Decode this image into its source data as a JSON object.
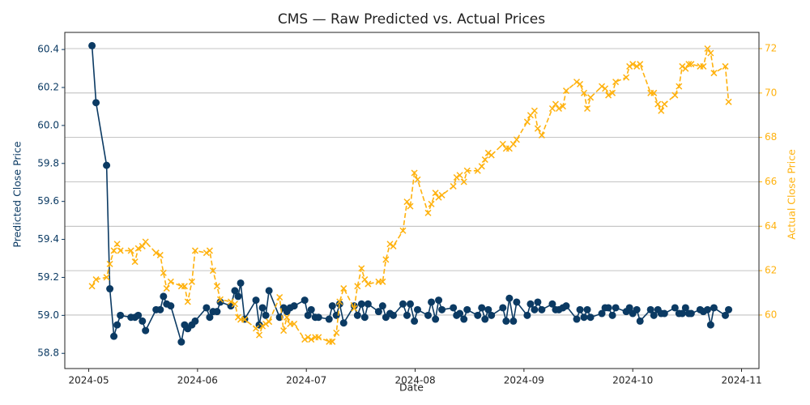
{
  "chart_data": {
    "type": "line",
    "title": "CMS — Raw Predicted vs. Actual Prices",
    "xlabel": "Date",
    "ylabel": "Predicted Close Price",
    "y2label": "Actual Close Price",
    "x": [
      5.03,
      5.067,
      5.164,
      5.194,
      5.231,
      5.261,
      5.291,
      5.388,
      5.425,
      5.455,
      5.493,
      5.522,
      5.619,
      5.657,
      5.687,
      5.716,
      5.754,
      5.851,
      5.881,
      5.91,
      5.948,
      5.978,
      6.082,
      6.112,
      6.142,
      6.179,
      6.209,
      6.306,
      6.343,
      6.373,
      6.396,
      6.433,
      6.537,
      6.567,
      6.597,
      6.627,
      6.657,
      6.754,
      6.791,
      6.821,
      6.851,
      6.888,
      6.985,
      7.015,
      7.045,
      7.082,
      7.112,
      7.209,
      7.239,
      7.276,
      7.306,
      7.343,
      7.44,
      7.47,
      7.507,
      7.537,
      7.567,
      7.664,
      7.701,
      7.731,
      7.769,
      7.799,
      7.888,
      7.925,
      7.955,
      7.993,
      8.022,
      8.119,
      8.149,
      8.187,
      8.216,
      8.246,
      8.351,
      8.381,
      8.41,
      8.448,
      8.478,
      8.575,
      8.612,
      8.642,
      8.672,
      8.701,
      8.806,
      8.836,
      8.866,
      8.903,
      8.933,
      9.03,
      9.06,
      9.097,
      9.127,
      9.164,
      9.261,
      9.291,
      9.321,
      9.358,
      9.388,
      9.485,
      9.515,
      9.552,
      9.582,
      9.612,
      9.716,
      9.746,
      9.776,
      9.813,
      9.843,
      9.94,
      9.97,
      10.0,
      10.037,
      10.067,
      10.164,
      10.194,
      10.231,
      10.261,
      10.291,
      10.388,
      10.425,
      10.455,
      10.485,
      10.515,
      10.537,
      10.619,
      10.649,
      10.687,
      10.716,
      10.746,
      10.851,
      10.881
    ],
    "xlim": [
      4.78,
      11.16
    ],
    "xticks": [
      {
        "value": 5,
        "label": "2024-05"
      },
      {
        "value": 6,
        "label": "2024-06"
      },
      {
        "value": 7,
        "label": "2024-07"
      },
      {
        "value": 8,
        "label": "2024-08"
      },
      {
        "value": 9,
        "label": "2024-09"
      },
      {
        "value": 10,
        "label": "2024-10"
      },
      {
        "value": 11,
        "label": "2024-11"
      }
    ],
    "ylim": [
      58.72,
      60.49
    ],
    "yticks": [
      58.8,
      {
        "value": 59.0,
        "label": "59.0"
      },
      59.2,
      59.4,
      59.6,
      59.8,
      {
        "value": 60.0,
        "label": "60.0"
      },
      60.2,
      60.4
    ],
    "y2lim": [
      57.59,
      72.73
    ],
    "y2ticks": [
      60,
      62,
      64,
      66,
      68,
      70,
      72
    ],
    "grid": true,
    "grid_axis": "y2",
    "series": [
      {
        "name": "Predicted",
        "color": "#0b3a63",
        "marker": "circle",
        "values": [
          60.42,
          60.12,
          59.79,
          59.14,
          58.89,
          58.95,
          59.0,
          58.99,
          58.99,
          59.0,
          58.97,
          58.92,
          59.03,
          59.03,
          59.1,
          59.06,
          59.05,
          58.86,
          58.95,
          58.93,
          58.95,
          58.97,
          59.04,
          58.99,
          59.02,
          59.02,
          59.07,
          59.05,
          59.13,
          59.1,
          59.17,
          58.98,
          59.08,
          58.95,
          59.04,
          59.0,
          59.13,
          58.99,
          59.04,
          59.02,
          59.04,
          59.05,
          59.08,
          59.0,
          59.03,
          58.99,
          58.99,
          58.98,
          59.05,
          59.0,
          59.06,
          58.96,
          59.05,
          59.0,
          59.06,
          58.99,
          59.06,
          59.02,
          59.05,
          58.99,
          59.01,
          59.0,
          59.06,
          59.0,
          59.06,
          58.97,
          59.03,
          59.0,
          59.07,
          58.98,
          59.08,
          59.03,
          59.04,
          59.0,
          59.01,
          58.98,
          59.03,
          59.0,
          59.04,
          58.98,
          59.03,
          59.0,
          59.04,
          58.97,
          59.09,
          58.97,
          59.07,
          59.0,
          59.06,
          59.03,
          59.07,
          59.03,
          59.06,
          59.03,
          59.03,
          59.04,
          59.05,
          58.98,
          59.03,
          58.99,
          59.03,
          58.99,
          59.01,
          59.04,
          59.04,
          59.0,
          59.04,
          59.02,
          59.04,
          59.01,
          59.03,
          58.97,
          59.03,
          59.0,
          59.03,
          59.01,
          59.01,
          59.04,
          59.01,
          59.01,
          59.04,
          59.01,
          59.01,
          59.03,
          59.02,
          59.03,
          58.95,
          59.04,
          59.0,
          59.03
        ]
      },
      {
        "name": "Actual",
        "color": "#ffb20f",
        "marker": "x",
        "axis": "y2",
        "dash": true,
        "values": [
          61.3,
          61.6,
          61.7,
          62.3,
          62.9,
          63.2,
          62.9,
          62.9,
          62.4,
          63.0,
          63.1,
          63.3,
          62.8,
          62.7,
          61.9,
          61.2,
          61.5,
          61.3,
          61.3,
          60.6,
          61.5,
          62.9,
          62.8,
          62.9,
          62.0,
          61.3,
          60.7,
          60.6,
          60.5,
          59.9,
          59.8,
          59.8,
          59.4,
          59.1,
          59.5,
          59.6,
          59.7,
          60.8,
          59.3,
          59.9,
          59.6,
          59.6,
          58.9,
          59.0,
          58.9,
          59.0,
          59.0,
          58.8,
          58.8,
          59.2,
          60.6,
          61.2,
          60.3,
          61.3,
          62.1,
          61.6,
          61.4,
          61.5,
          61.5,
          62.5,
          63.2,
          63.1,
          63.8,
          65.1,
          64.9,
          66.4,
          66.1,
          64.6,
          65.0,
          65.5,
          65.3,
          65.4,
          65.8,
          66.2,
          66.3,
          66.0,
          66.5,
          66.5,
          66.7,
          67.0,
          67.3,
          67.2,
          67.7,
          67.5,
          67.5,
          67.7,
          67.9,
          68.7,
          69.0,
          69.2,
          68.4,
          68.1,
          69.3,
          69.5,
          69.3,
          69.4,
          70.1,
          70.5,
          70.4,
          70.0,
          69.3,
          69.8,
          70.3,
          70.2,
          69.9,
          70.0,
          70.5,
          70.7,
          71.2,
          71.3,
          71.2,
          71.3,
          70.0,
          70.0,
          69.5,
          69.2,
          69.5,
          69.9,
          70.3,
          71.2,
          71.1,
          71.3,
          71.3,
          71.2,
          71.2,
          72.0,
          71.8,
          70.9,
          71.2,
          69.6
        ]
      }
    ]
  }
}
